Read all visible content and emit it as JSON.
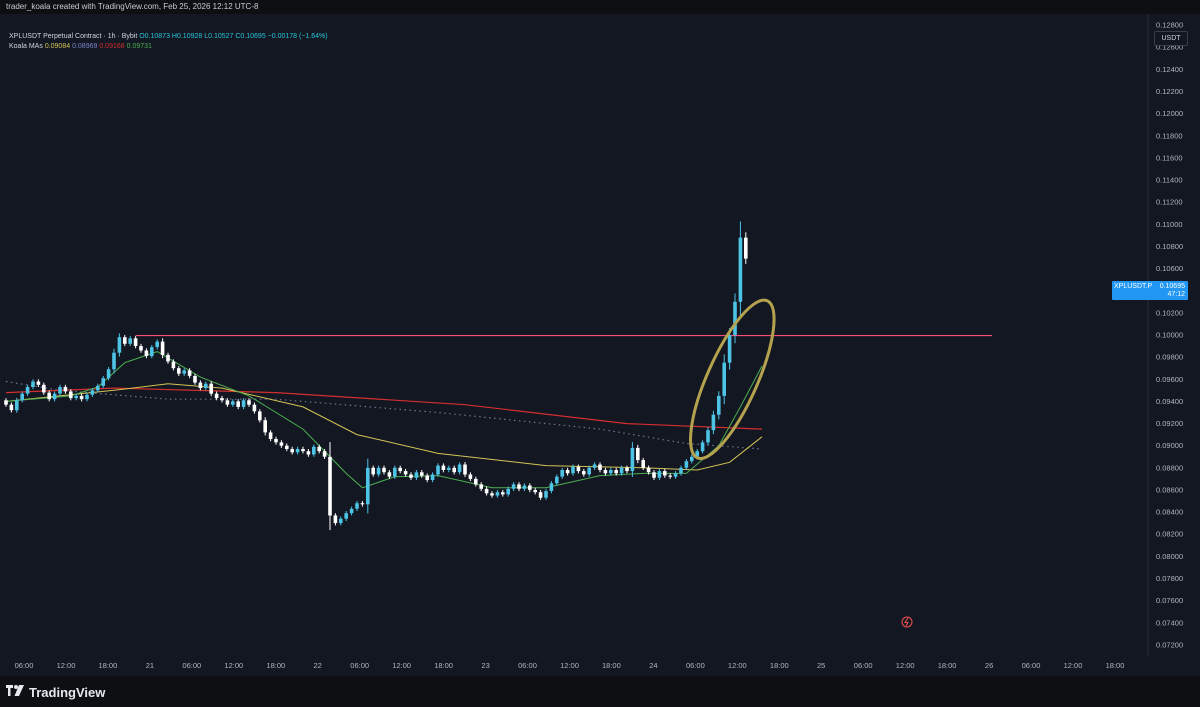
{
  "header": {
    "attribution": "trader_koala created with TradingView.com, Feb 25, 2026 12:12 UTC-8"
  },
  "legend": {
    "symbol_line": "XPLUSDT Perpetual Contract · 1h · Bybit",
    "ohlc": "O0.10873 H0.10928 L0.10527 C0.10695 −0.00178 (−1.64%)",
    "ma_title": "Koala MAs",
    "ma_values": [
      {
        "value": "0.09084",
        "color": "#d4c455"
      },
      {
        "value": "0.08969",
        "color": "#7b83c9"
      },
      {
        "value": "0.09168",
        "color": "#d32f2f"
      },
      {
        "value": "0.09731",
        "color": "#4caf50"
      }
    ]
  },
  "currency": "USDT",
  "price_tag": {
    "symbol": "XPLUSDT.P",
    "price": "0.10695",
    "countdown": "47:12"
  },
  "footer": {
    "logo_text": "TradingView"
  },
  "colors": {
    "up": "#4dc3e6",
    "down": "#ffffff",
    "resistance": "#ff4b78",
    "ma_red": "#d32f2f",
    "ma_yellow": "#d4c455",
    "ma_green": "#4caf50",
    "ma_dotted": "#6f7694",
    "annotation": "#b5a24f"
  },
  "chart_data": {
    "type": "candlestick",
    "interval": "1h",
    "ylim": [
      0.071,
      0.129
    ],
    "y_ticks": [
      "0.12800",
      "0.12600",
      "0.12400",
      "0.12200",
      "0.12000",
      "0.11800",
      "0.11600",
      "0.11400",
      "0.11200",
      "0.11000",
      "0.10800",
      "0.10600",
      "0.10400",
      "0.10200",
      "0.10000",
      "0.09800",
      "0.09600",
      "0.09400",
      "0.09200",
      "0.09000",
      "0.08800",
      "0.08600",
      "0.08400",
      "0.08200",
      "0.08000",
      "0.07800",
      "0.07600",
      "0.07400",
      "0.07200"
    ],
    "x_ticks": [
      "06:00",
      "12:00",
      "18:00",
      "21",
      "06:00",
      "12:00",
      "18:00",
      "22",
      "06:00",
      "12:00",
      "18:00",
      "23",
      "06:00",
      "12:00",
      "18:00",
      "24",
      "06:00",
      "12:00",
      "18:00",
      "25",
      "06:00",
      "12:00",
      "18:00",
      "26",
      "06:00",
      "12:00",
      "18:00"
    ],
    "resistance_level": 0.09995,
    "close": [
      0.0937,
      0.0932,
      0.0941,
      0.0947,
      0.0953,
      0.0958,
      0.0955,
      0.0948,
      0.0942,
      0.0947,
      0.0953,
      0.0949,
      0.0943,
      0.0945,
      0.0942,
      0.0946,
      0.095,
      0.0954,
      0.0961,
      0.0969,
      0.0984,
      0.0998,
      0.0992,
      0.0997,
      0.099,
      0.0986,
      0.0981,
      0.0989,
      0.0994,
      0.0982,
      0.0976,
      0.097,
      0.0965,
      0.0968,
      0.0963,
      0.0957,
      0.0952,
      0.0956,
      0.0947,
      0.0943,
      0.0941,
      0.0937,
      0.094,
      0.0935,
      0.0941,
      0.0937,
      0.0931,
      0.0923,
      0.0912,
      0.0906,
      0.0903,
      0.09,
      0.0897,
      0.0894,
      0.0897,
      0.0895,
      0.0892,
      0.0899,
      0.0895,
      0.089,
      0.0837,
      0.083,
      0.0834,
      0.0839,
      0.0843,
      0.0848,
      0.0847,
      0.088,
      0.0874,
      0.088,
      0.0876,
      0.0872,
      0.088,
      0.0877,
      0.0874,
      0.0871,
      0.0876,
      0.0873,
      0.0869,
      0.0874,
      0.0882,
      0.0878,
      0.088,
      0.0876,
      0.0883,
      0.0874,
      0.087,
      0.0865,
      0.0861,
      0.0857,
      0.0855,
      0.0858,
      0.0856,
      0.0861,
      0.0865,
      0.0861,
      0.0864,
      0.086,
      0.0858,
      0.0853,
      0.0859,
      0.0866,
      0.0872,
      0.0878,
      0.0875,
      0.0881,
      0.0877,
      0.0874,
      0.088,
      0.0883,
      0.0878,
      0.0875,
      0.0878,
      0.0875,
      0.088,
      0.0877,
      0.0898,
      0.0887,
      0.088,
      0.0876,
      0.0871,
      0.0877,
      0.0873,
      0.0872,
      0.0875,
      0.088,
      0.0886,
      0.089,
      0.0895,
      0.0903,
      0.0914,
      0.0928,
      0.0945,
      0.0975,
      0.1,
      0.103,
      0.1088,
      0.1069
    ],
    "ma_red_points": [
      [
        0,
        0.0948
      ],
      [
        20,
        0.0952
      ],
      [
        50,
        0.0948
      ],
      [
        85,
        0.0937
      ],
      [
        115,
        0.092
      ],
      [
        140,
        0.0915
      ]
    ],
    "ma_dotted_points": [
      [
        0,
        0.0958
      ],
      [
        10,
        0.095
      ],
      [
        30,
        0.0942
      ],
      [
        50,
        0.0942
      ],
      [
        80,
        0.093
      ],
      [
        110,
        0.0915
      ],
      [
        126,
        0.0902
      ],
      [
        140,
        0.0897
      ]
    ],
    "ma_yellow_points": [
      [
        0,
        0.094
      ],
      [
        20,
        0.095
      ],
      [
        30,
        0.0956
      ],
      [
        40,
        0.0952
      ],
      [
        55,
        0.0935
      ],
      [
        65,
        0.091
      ],
      [
        80,
        0.0893
      ],
      [
        100,
        0.0882
      ],
      [
        118,
        0.088
      ],
      [
        128,
        0.0878
      ],
      [
        134,
        0.0885
      ],
      [
        140,
        0.0908
      ]
    ],
    "ma_green_points": [
      [
        0,
        0.094
      ],
      [
        12,
        0.0945
      ],
      [
        17,
        0.0953
      ],
      [
        22,
        0.0975
      ],
      [
        28,
        0.0985
      ],
      [
        36,
        0.0962
      ],
      [
        45,
        0.0945
      ],
      [
        55,
        0.0915
      ],
      [
        63,
        0.0875
      ],
      [
        66,
        0.0862
      ],
      [
        72,
        0.0872
      ],
      [
        80,
        0.0873
      ],
      [
        90,
        0.0862
      ],
      [
        100,
        0.0862
      ],
      [
        110,
        0.0873
      ],
      [
        118,
        0.0875
      ],
      [
        126,
        0.0875
      ],
      [
        132,
        0.09
      ],
      [
        136,
        0.0935
      ],
      [
        140,
        0.0972
      ]
    ]
  }
}
